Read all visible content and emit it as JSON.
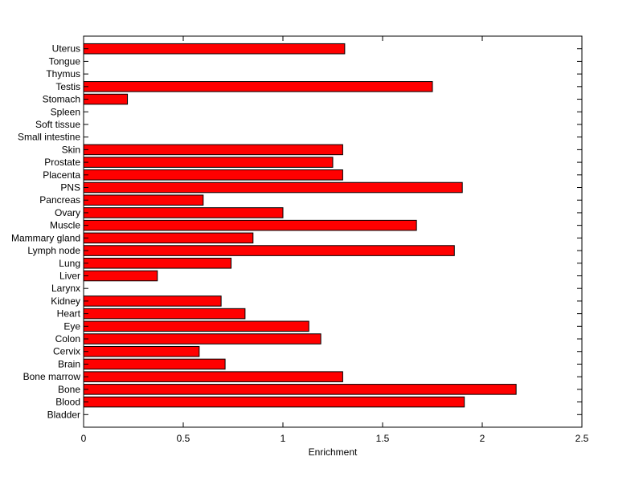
{
  "chart_data": {
    "type": "bar",
    "orientation": "horizontal",
    "title": "",
    "xlabel": "Enrichment",
    "ylabel": "",
    "xlim": [
      0,
      2.5
    ],
    "xticks": [
      0,
      0.5,
      1,
      1.5,
      2,
      2.5
    ],
    "xtick_labels": [
      "0",
      "0.5",
      "1",
      "1.5",
      "2",
      "2.5"
    ],
    "grid": false,
    "legend": "none",
    "bar_color": "#ff0000",
    "categories": [
      "Bladder",
      "Blood",
      "Bone",
      "Bone marrow",
      "Brain",
      "Cervix",
      "Colon",
      "Eye",
      "Heart",
      "Kidney",
      "Larynx",
      "Liver",
      "Lung",
      "Lymph node",
      "Mammary gland",
      "Muscle",
      "Ovary",
      "Pancreas",
      "PNS",
      "Placenta",
      "Prostate",
      "Skin",
      "Small intestine",
      "Soft tissue",
      "Spleen",
      "Stomach",
      "Testis",
      "Thymus",
      "Tongue",
      "Uterus"
    ],
    "values": [
      0,
      1.91,
      2.17,
      1.3,
      0.71,
      0.58,
      1.19,
      1.13,
      0.81,
      0.69,
      0,
      0.37,
      0.74,
      1.86,
      0.85,
      1.67,
      1.0,
      0.6,
      1.9,
      1.3,
      1.25,
      1.3,
      0,
      0,
      0,
      0.22,
      1.75,
      0,
      0,
      1.31
    ]
  }
}
